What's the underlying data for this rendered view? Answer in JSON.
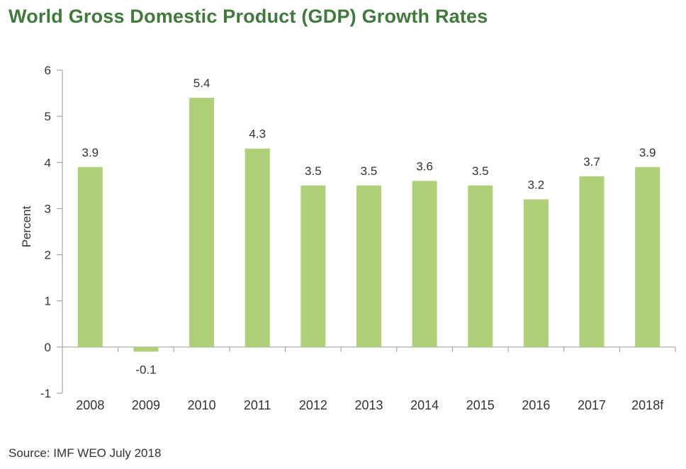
{
  "title": "World Gross Domestic Product (GDP) Growth Rates",
  "source": "Source: IMF WEO July 2018",
  "colors": {
    "title": "#3f7a3a",
    "bar": "#afd078",
    "axis": "#999999",
    "text": "#333333"
  },
  "chart_data": {
    "type": "bar",
    "title": "World Gross Domestic Product (GDP) Growth Rates",
    "xlabel": "",
    "ylabel": "Percent",
    "ylim": [
      -1,
      6
    ],
    "yticks": [
      -1,
      0,
      1,
      2,
      3,
      4,
      5,
      6
    ],
    "grid": false,
    "categories": [
      "2008",
      "2009",
      "2010",
      "2011",
      "2012",
      "2013",
      "2014",
      "2015",
      "2016",
      "2017",
      "2018f"
    ],
    "values": [
      3.9,
      -0.1,
      5.4,
      4.3,
      3.5,
      3.5,
      3.6,
      3.5,
      3.2,
      3.7,
      3.9
    ],
    "value_labels": [
      "3.9",
      "-0.1",
      "5.4",
      "4.3",
      "3.5",
      "3.5",
      "3.6",
      "3.5",
      "3.2",
      "3.7",
      "3.9"
    ]
  }
}
